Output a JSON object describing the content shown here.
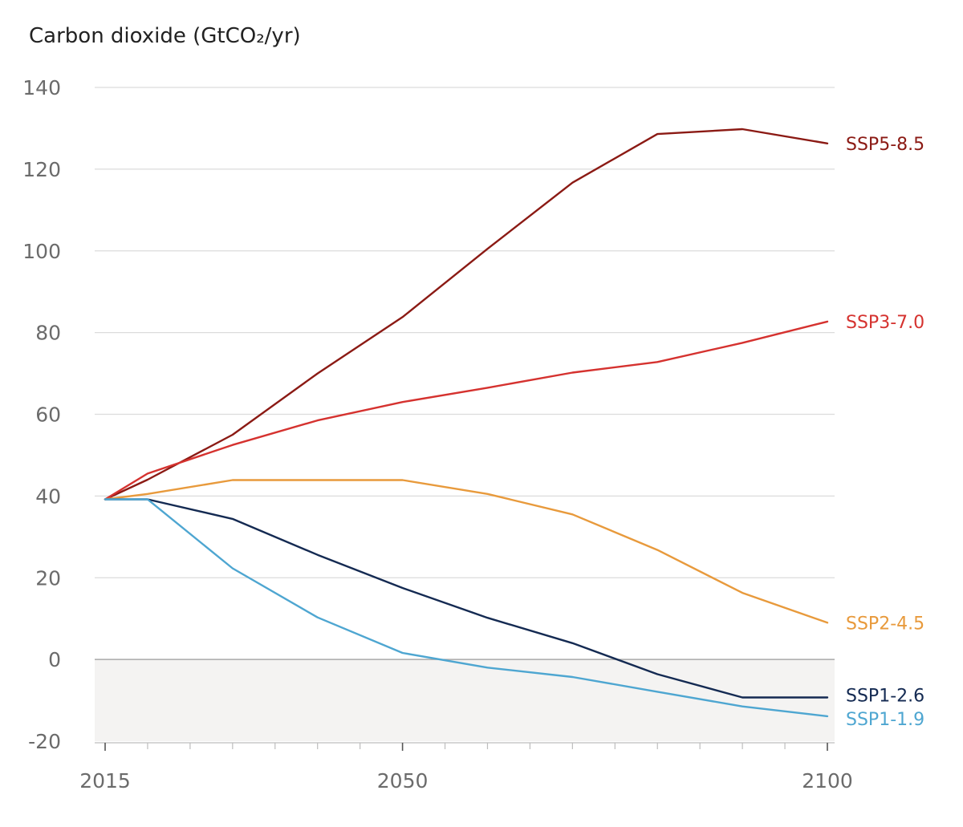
{
  "chart_data": {
    "type": "line",
    "title": "Carbon dioxide (GtCO₂/yr)",
    "xlabel": "",
    "ylabel": "Carbon dioxide (GtCO₂/yr)",
    "xlim": [
      2015,
      2100
    ],
    "ylim": [
      -20,
      140
    ],
    "x_ticks": [
      2015,
      2050,
      2100
    ],
    "y_ticks": [
      -20,
      0,
      20,
      40,
      60,
      80,
      100,
      120,
      140
    ],
    "grid": true,
    "negative_region_shaded": true,
    "series": [
      {
        "name": "SSP5-8.5",
        "color": "#8b1a14",
        "x": [
          2015,
          2020,
          2030,
          2040,
          2050,
          2060,
          2070,
          2080,
          2090,
          2100
        ],
        "values": [
          39.2,
          44,
          55,
          70,
          83.8,
          100.5,
          116.7,
          128.6,
          129.8,
          126.3
        ]
      },
      {
        "name": "SSP3-7.0",
        "color": "#d5322f",
        "x": [
          2015,
          2020,
          2030,
          2040,
          2050,
          2060,
          2070,
          2080,
          2090,
          2100
        ],
        "values": [
          39.2,
          45.5,
          52.5,
          58.5,
          63,
          66.5,
          70.2,
          72.8,
          77.5,
          82.7
        ]
      },
      {
        "name": "SSP2-4.5",
        "color": "#e89a3c",
        "x": [
          2015,
          2020,
          2030,
          2040,
          2050,
          2060,
          2070,
          2080,
          2090,
          2100
        ],
        "values": [
          39.2,
          40.5,
          43.9,
          43.9,
          43.9,
          40.5,
          35.5,
          26.8,
          16.3,
          9
        ]
      },
      {
        "name": "SSP1-2.6",
        "color": "#142a52",
        "x": [
          2015,
          2020,
          2030,
          2040,
          2050,
          2060,
          2070,
          2080,
          2090,
          2100
        ],
        "values": [
          39.2,
          39.2,
          34.4,
          25.6,
          17.5,
          10.2,
          4,
          -3.6,
          -9.3,
          -9.3
        ]
      },
      {
        "name": "SSP1-1.9",
        "color": "#4ea6d1",
        "x": [
          2015,
          2020,
          2030,
          2040,
          2050,
          2060,
          2070,
          2080,
          2090,
          2100
        ],
        "values": [
          39.2,
          39.2,
          22.3,
          10.3,
          1.6,
          -2,
          -4.3,
          -7.9,
          -11.5,
          -13.9
        ]
      }
    ]
  }
}
